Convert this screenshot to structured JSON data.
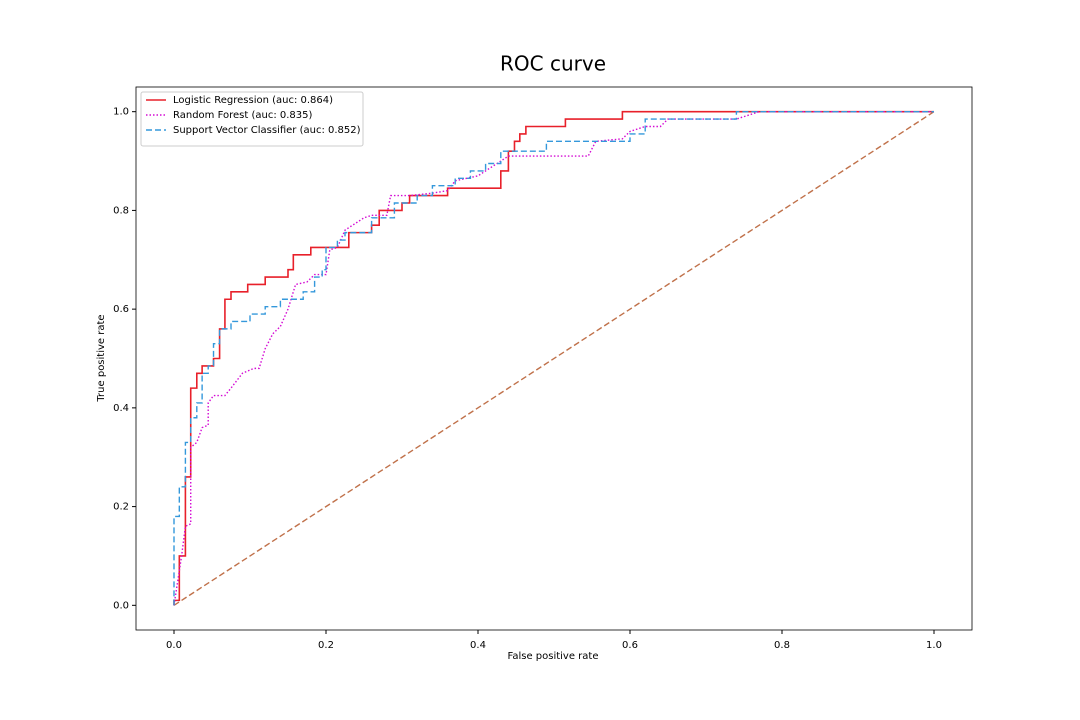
{
  "chart_data": {
    "type": "line",
    "title": "ROC curve",
    "x_label": "False positive rate",
    "y_label": "True positive rate",
    "xlim": [
      -0.05,
      1.05
    ],
    "ylim": [
      -0.05,
      1.05
    ],
    "xticks": [
      {
        "value": 0,
        "label": "0.0"
      },
      0.2,
      0.4,
      0.6,
      0.8,
      {
        "value": 1,
        "label": "1.0"
      }
    ],
    "yticks": [
      {
        "value": 0,
        "label": "0.0"
      },
      0.2,
      0.4,
      0.6,
      0.8,
      {
        "value": 1,
        "label": "1.0"
      }
    ],
    "legend": "upper left",
    "series": [
      {
        "name": "Logistic Regression (auc: 0.864)",
        "color": "#e8202a",
        "linestyle": "solid",
        "x": [
          0,
          0,
          0.007,
          0.007,
          0.015,
          0.015,
          0.022,
          0.022,
          0.03,
          0.03,
          0.037,
          0.037,
          0.052,
          0.052,
          0.06,
          0.06,
          0.067,
          0.067,
          0.075,
          0.075,
          0.097,
          0.097,
          0.12,
          0.12,
          0.15,
          0.15,
          0.157,
          0.157,
          0.18,
          0.18,
          0.23,
          0.23,
          0.26,
          0.26,
          0.27,
          0.27,
          0.3,
          0.3,
          0.31,
          0.31,
          0.36,
          0.36,
          0.43,
          0.43,
          0.44,
          0.44,
          0.448,
          0.448,
          0.455,
          0.455,
          0.463,
          0.463,
          0.515,
          0.515,
          0.59,
          0.59,
          1
        ],
        "values": [
          0,
          0.01,
          0.01,
          0.1,
          0.1,
          0.26,
          0.26,
          0.44,
          0.44,
          0.47,
          0.47,
          0.485,
          0.485,
          0.5,
          0.5,
          0.56,
          0.56,
          0.62,
          0.62,
          0.635,
          0.635,
          0.65,
          0.65,
          0.665,
          0.665,
          0.68,
          0.68,
          0.71,
          0.71,
          0.725,
          0.725,
          0.755,
          0.755,
          0.77,
          0.77,
          0.8,
          0.8,
          0.815,
          0.815,
          0.83,
          0.83,
          0.845,
          0.845,
          0.88,
          0.88,
          0.92,
          0.92,
          0.94,
          0.94,
          0.955,
          0.955,
          0.97,
          0.97,
          0.985,
          0.985,
          1,
          1
        ]
      },
      {
        "name": "Random Forest (auc: 0.835)",
        "color": "#d40bd4",
        "linestyle": "dotted",
        "x": [
          0,
          0.01,
          0.015,
          0.022,
          0.022,
          0.03,
          0.037,
          0.045,
          0.045,
          0.052,
          0.067,
          0.075,
          0.09,
          0.105,
          0.112,
          0.12,
          0.13,
          0.14,
          0.15,
          0.16,
          0.175,
          0.185,
          0.2,
          0.205,
          0.215,
          0.225,
          0.24,
          0.25,
          0.26,
          0.28,
          0.285,
          0.31,
          0.34,
          0.36,
          0.37,
          0.4,
          0.42,
          0.44,
          0.545,
          0.555,
          0.59,
          0.6,
          0.62,
          0.64,
          0.65,
          0.74,
          0.77,
          1
        ],
        "values": [
          0,
          0.1,
          0.16,
          0.165,
          0.32,
          0.33,
          0.36,
          0.365,
          0.41,
          0.425,
          0.425,
          0.44,
          0.47,
          0.48,
          0.48,
          0.52,
          0.55,
          0.565,
          0.6,
          0.65,
          0.655,
          0.67,
          0.67,
          0.72,
          0.725,
          0.76,
          0.775,
          0.785,
          0.79,
          0.79,
          0.83,
          0.83,
          0.835,
          0.84,
          0.86,
          0.87,
          0.89,
          0.91,
          0.91,
          0.94,
          0.945,
          0.96,
          0.97,
          0.97,
          0.985,
          0.985,
          1,
          1
        ]
      },
      {
        "name": "Support Vector Classifier (auc: 0.852)",
        "color": "#3498db",
        "linestyle": "dashed",
        "x": [
          0,
          0,
          0.007,
          0.007,
          0.015,
          0.015,
          0.022,
          0.022,
          0.03,
          0.03,
          0.037,
          0.037,
          0.045,
          0.045,
          0.052,
          0.052,
          0.06,
          0.06,
          0.075,
          0.075,
          0.1,
          0.1,
          0.12,
          0.12,
          0.14,
          0.14,
          0.17,
          0.17,
          0.185,
          0.185,
          0.195,
          0.195,
          0.2,
          0.2,
          0.215,
          0.215,
          0.225,
          0.225,
          0.26,
          0.26,
          0.29,
          0.29,
          0.32,
          0.32,
          0.34,
          0.34,
          0.37,
          0.37,
          0.39,
          0.39,
          0.41,
          0.41,
          0.43,
          0.43,
          0.49,
          0.49,
          0.6,
          0.6,
          0.62,
          0.62,
          0.74,
          0.74,
          1
        ],
        "values": [
          0,
          0.18,
          0.18,
          0.24,
          0.24,
          0.33,
          0.33,
          0.38,
          0.38,
          0.41,
          0.41,
          0.47,
          0.47,
          0.485,
          0.485,
          0.53,
          0.53,
          0.56,
          0.56,
          0.575,
          0.575,
          0.59,
          0.59,
          0.605,
          0.605,
          0.62,
          0.62,
          0.635,
          0.635,
          0.665,
          0.665,
          0.68,
          0.68,
          0.725,
          0.725,
          0.74,
          0.74,
          0.755,
          0.755,
          0.785,
          0.785,
          0.815,
          0.815,
          0.83,
          0.83,
          0.85,
          0.85,
          0.865,
          0.865,
          0.88,
          0.88,
          0.895,
          0.895,
          0.92,
          0.92,
          0.94,
          0.94,
          0.955,
          0.955,
          0.985,
          0.985,
          1,
          1
        ]
      }
    ],
    "reference_line": {
      "x": [
        0,
        1
      ],
      "values": [
        0,
        1
      ],
      "color": "#c0714a",
      "linestyle": "dashed"
    }
  }
}
